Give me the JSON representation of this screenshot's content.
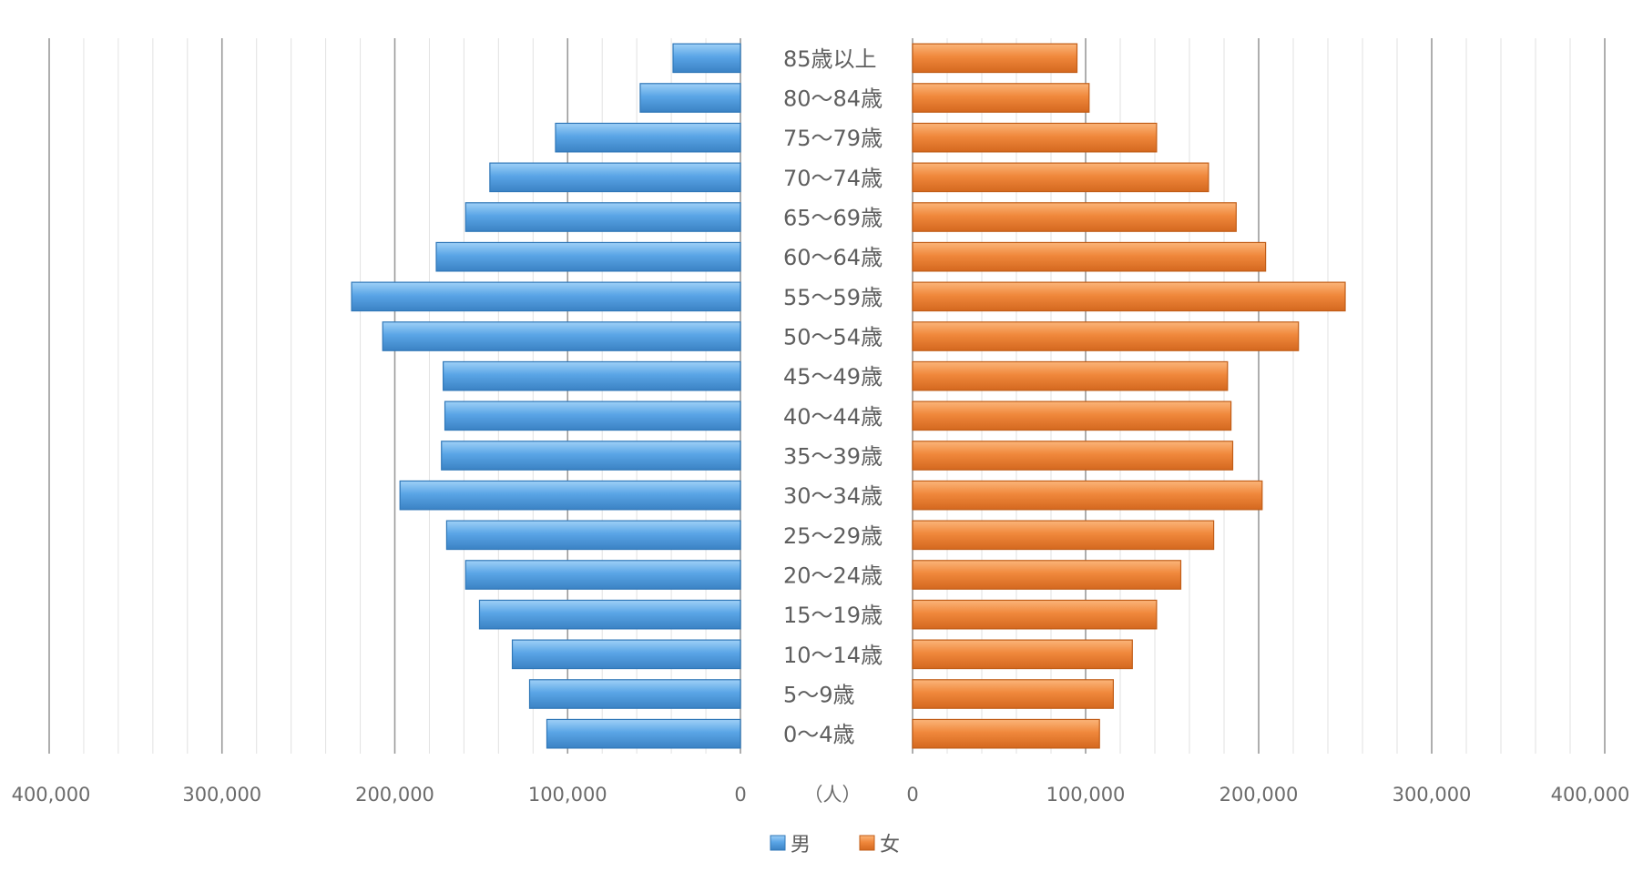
{
  "chart_data": {
    "type": "bar",
    "orientation": "horizontal-population-pyramid",
    "categories": [
      "85歳以上",
      "80〜84歳",
      "75〜79歳",
      "70〜74歳",
      "65〜69歳",
      "60〜64歳",
      "55〜59歳",
      "50〜54歳",
      "45〜49歳",
      "40〜44歳",
      "35〜39歳",
      "30〜34歳",
      "25〜29歳",
      "20〜24歳",
      "15〜19歳",
      "10〜14歳",
      "5〜9歳",
      "0〜4歳"
    ],
    "series": [
      {
        "name": "男",
        "color": "#5aa5e6",
        "values": [
          39000,
          58000,
          107000,
          145000,
          159000,
          176000,
          225000,
          207000,
          172000,
          171000,
          173000,
          197000,
          170000,
          159000,
          151000,
          132000,
          122000,
          112000
        ]
      },
      {
        "name": "女",
        "color": "#f0883c",
        "values": [
          95000,
          102000,
          141000,
          171000,
          187000,
          204000,
          250000,
          223000,
          182000,
          184000,
          185000,
          202000,
          174000,
          155000,
          141000,
          127000,
          116000,
          108000
        ]
      }
    ],
    "left_axis": {
      "ticks": [
        "400,000",
        "300,000",
        "200,000",
        "100,000",
        "0"
      ],
      "max": 400000
    },
    "right_axis": {
      "ticks": [
        "0",
        "100,000",
        "200,000",
        "300,000",
        "400,000"
      ],
      "max": 400000
    },
    "unit_label": "（人）",
    "grid": true,
    "legend": {
      "placement": "bottom-center",
      "items": [
        "男",
        "女"
      ]
    }
  }
}
